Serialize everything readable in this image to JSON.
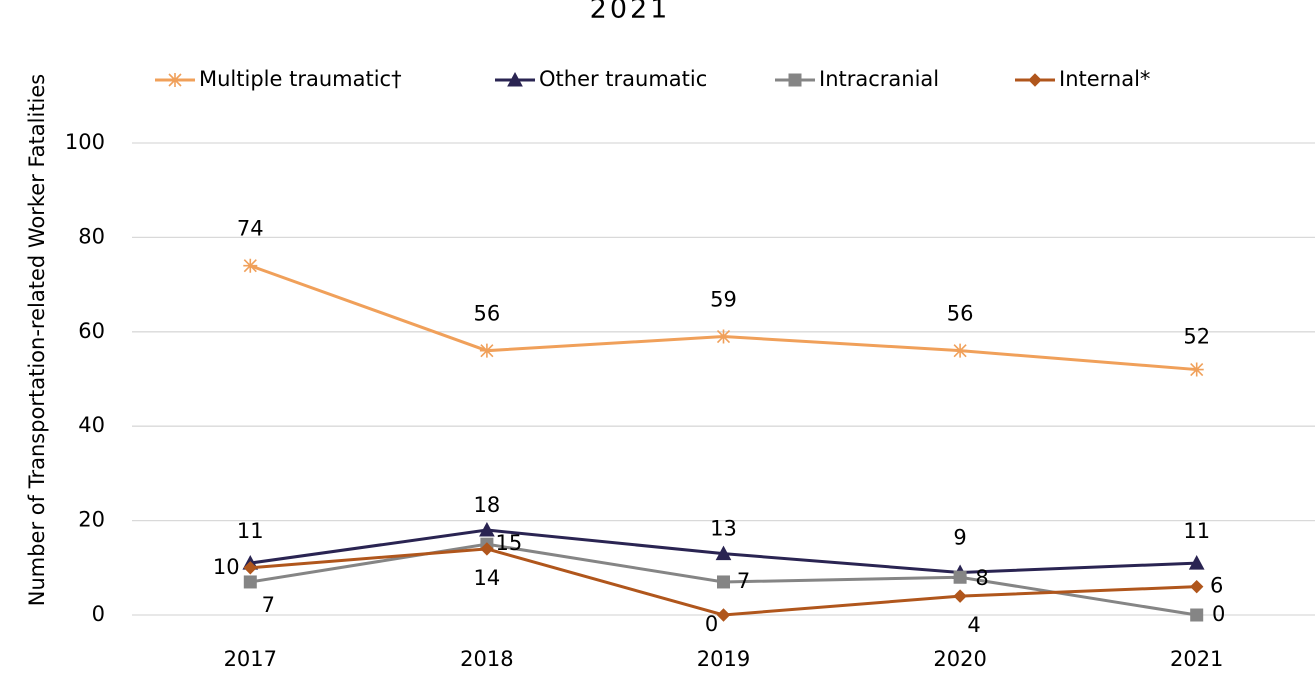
{
  "chart_data": {
    "type": "line",
    "title": "2021",
    "y_label": "Number of Transportation-related Worker Fatalities",
    "categories": [
      "2017",
      "2018",
      "2019",
      "2020",
      "2021"
    ],
    "series": [
      {
        "name": "Multiple traumatic†",
        "color": "#f0a05a",
        "marker": "star",
        "values": [
          74,
          56,
          59,
          56,
          52
        ]
      },
      {
        "name": "Other traumatic",
        "color": "#2a2452",
        "marker": "triangle",
        "values": [
          11,
          18,
          13,
          9,
          11
        ]
      },
      {
        "name": "Intracranial",
        "color": "#858585",
        "marker": "square",
        "values": [
          7,
          15,
          7,
          8,
          0
        ]
      },
      {
        "name": "Internal*",
        "color": "#b0561c",
        "marker": "diamond",
        "values": [
          10,
          14,
          0,
          4,
          6
        ]
      }
    ],
    "ylim": [
      0,
      100
    ],
    "yticks": [
      0,
      20,
      40,
      60,
      80,
      100
    ],
    "grid": true,
    "legend": "top"
  }
}
